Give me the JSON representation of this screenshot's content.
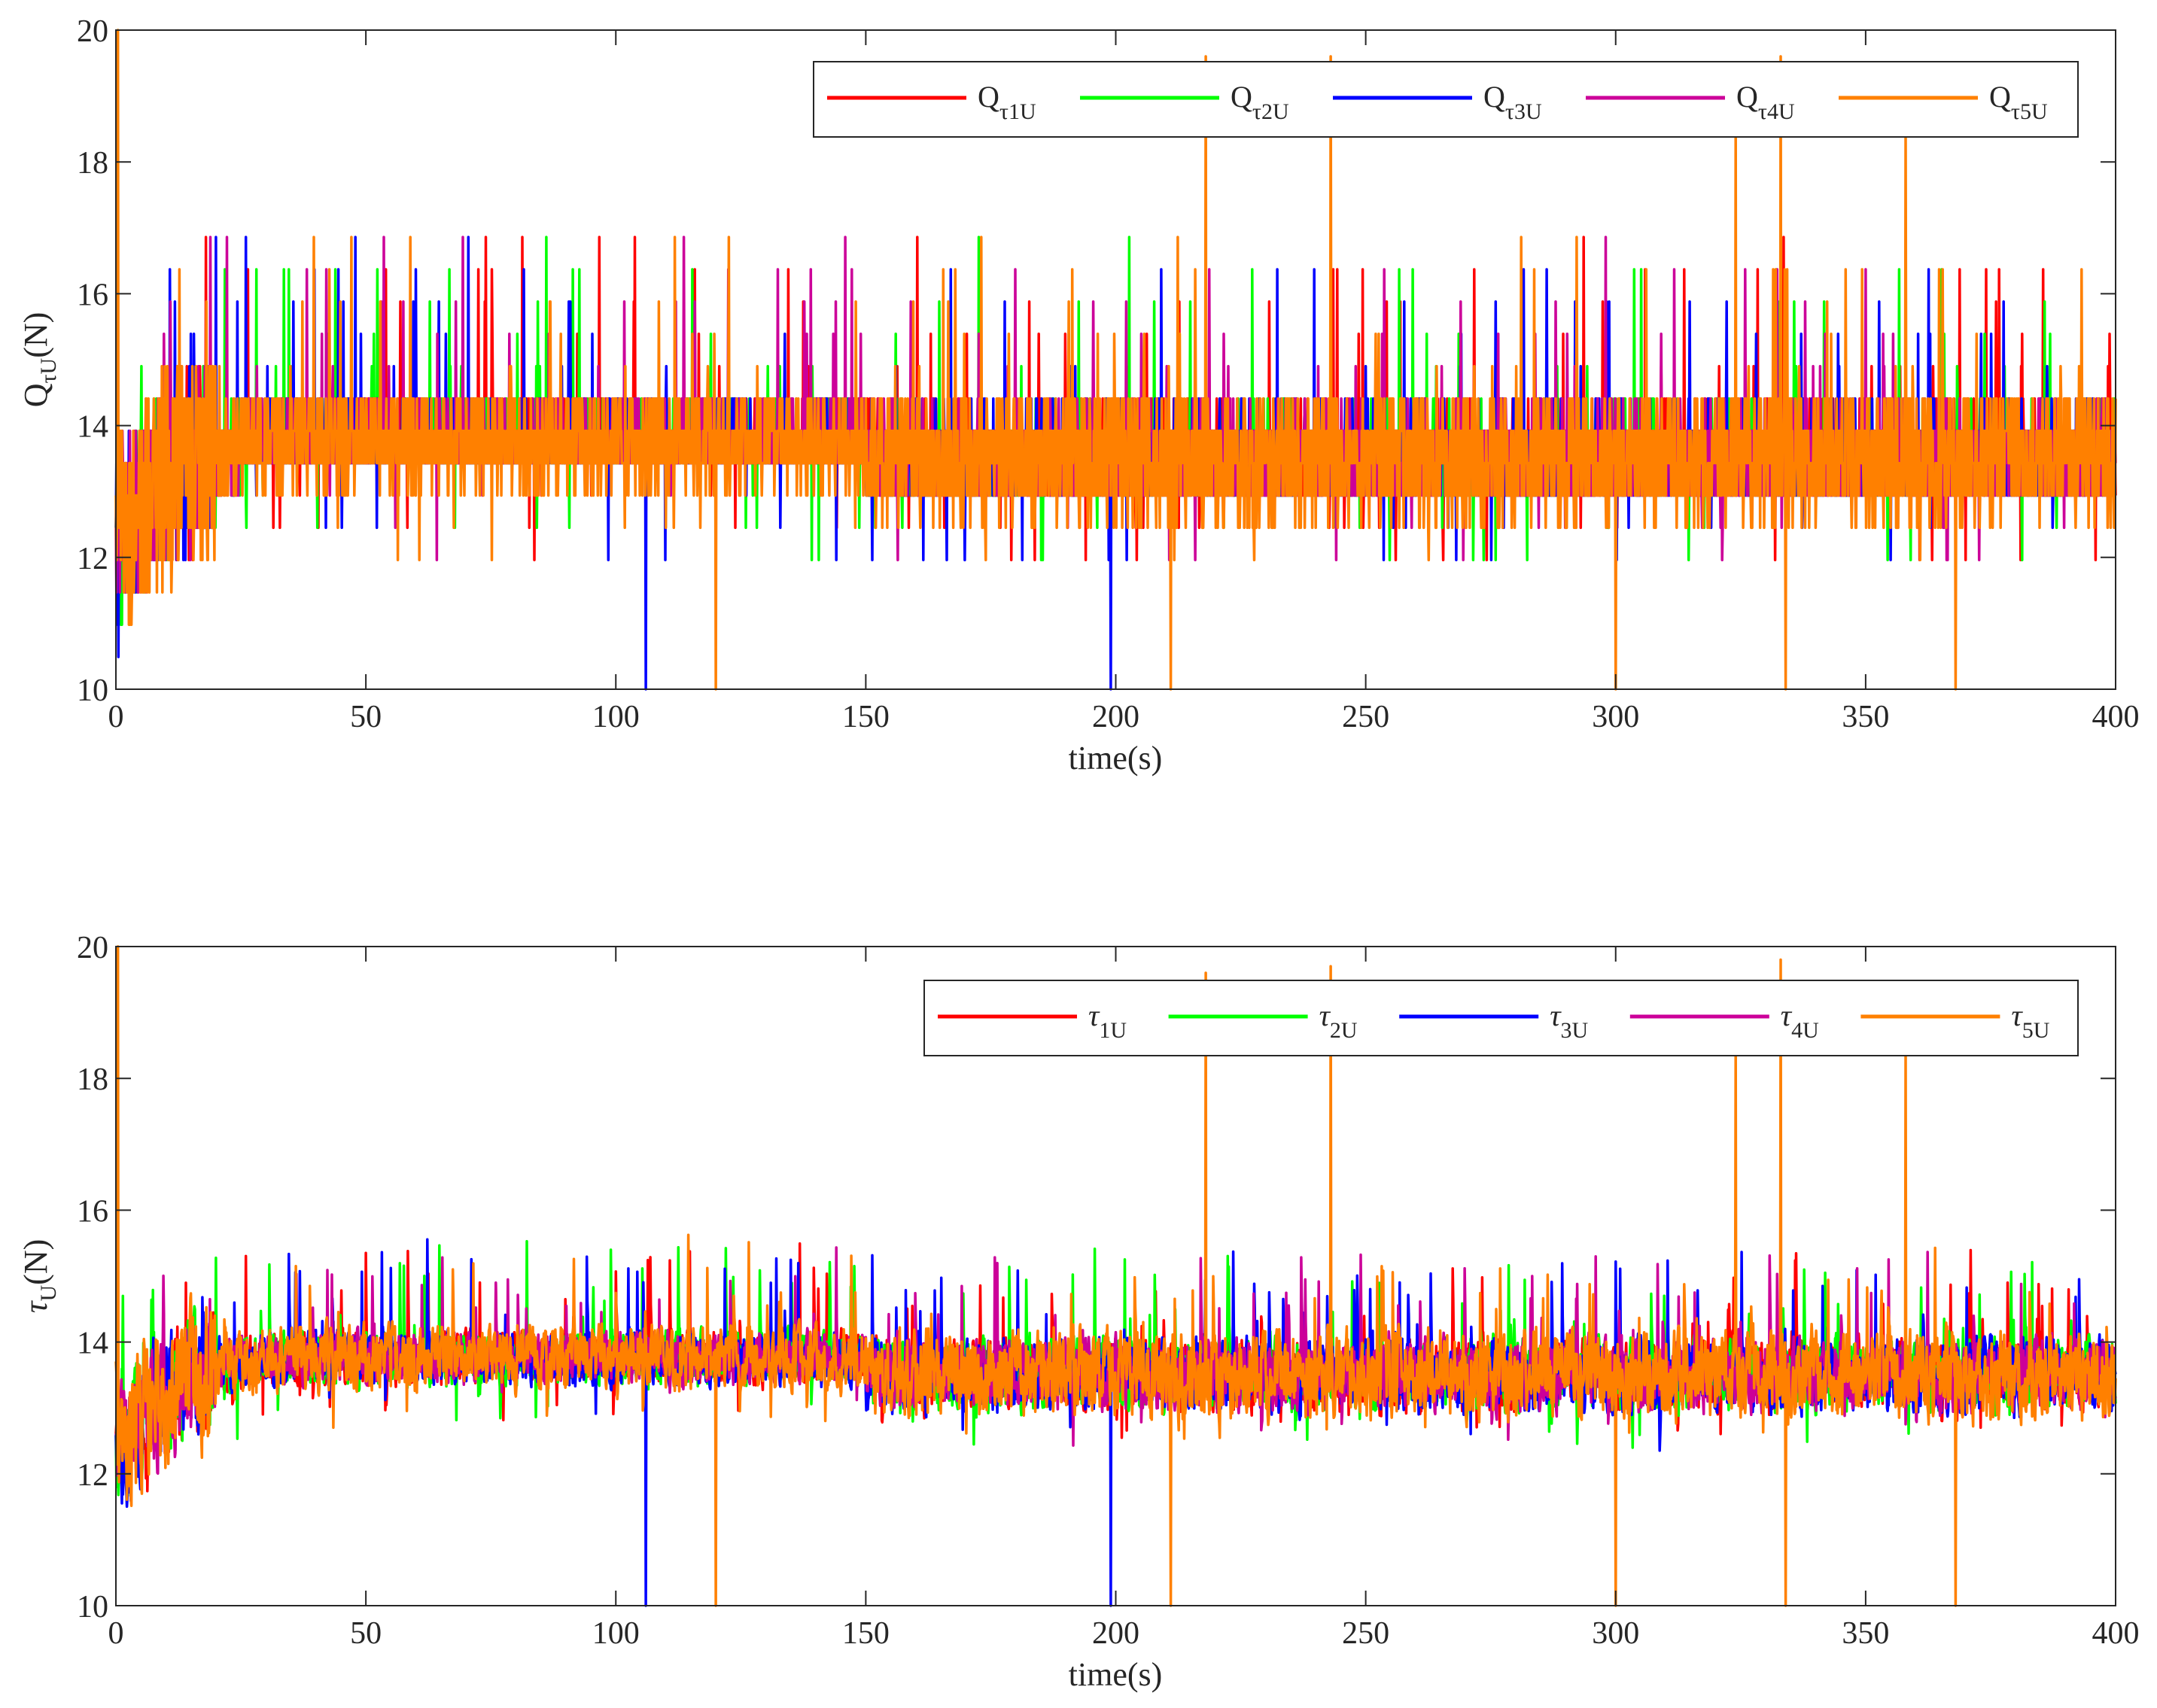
{
  "chart_data": [
    {
      "type": "line",
      "panel": "top",
      "xlabel": "time(s)",
      "ylabel_main": "Q",
      "ylabel_sub": "τU",
      "ylabel_tail": "(N)",
      "xlim": [
        0,
        400
      ],
      "ylim": [
        10,
        20
      ],
      "xticks": [
        0,
        50,
        100,
        150,
        200,
        250,
        300,
        350,
        400
      ],
      "yticks": [
        10,
        12,
        14,
        16,
        18,
        20
      ],
      "grid": false,
      "legend": "top-right, horizontal",
      "quantized": true,
      "series": [
        {
          "main": "Q",
          "sub": "τ1U",
          "color": "#ff0000"
        },
        {
          "main": "Q",
          "sub": "τ2U",
          "color": "#00ff00"
        },
        {
          "main": "Q",
          "sub": "τ3U",
          "color": "#0000ff"
        },
        {
          "main": "Q",
          "sub": "τ4U",
          "color": "#cc0099"
        },
        {
          "main": "Q",
          "sub": "τ5U",
          "color": "#ff8000"
        }
      ],
      "spikes": [
        {
          "x": 218,
          "y": 19.6
        },
        {
          "x": 243,
          "y": 19.6
        },
        {
          "x": 324,
          "y": 18.4
        },
        {
          "x": 333,
          "y": 19.6
        },
        {
          "x": 358,
          "y": 18.4
        },
        {
          "x": 0.4,
          "y": 20
        },
        {
          "x": 106,
          "y": 10.0,
          "series": 2
        },
        {
          "x": 199,
          "y": 10.0,
          "series": 2
        },
        {
          "x": 120,
          "y": 10.0
        },
        {
          "x": 211,
          "y": 10.0
        },
        {
          "x": 300,
          "y": 10.0
        },
        {
          "x": 334,
          "y": 10.0
        },
        {
          "x": 368,
          "y": 10.0
        }
      ]
    },
    {
      "type": "line",
      "panel": "bottom",
      "xlabel": "time(s)",
      "ylabel_main": "τ",
      "ylabel_sub": "U",
      "ylabel_tail": "(N)",
      "xlim": [
        0,
        400
      ],
      "ylim": [
        10,
        20
      ],
      "xticks": [
        0,
        50,
        100,
        150,
        200,
        250,
        300,
        350,
        400
      ],
      "yticks": [
        10,
        12,
        14,
        16,
        18,
        20
      ],
      "grid": false,
      "legend": "top-right, horizontal",
      "quantized": false,
      "series": [
        {
          "main": "τ",
          "sub": "1U",
          "color": "#ff0000"
        },
        {
          "main": "τ",
          "sub": "2U",
          "color": "#00ff00"
        },
        {
          "main": "τ",
          "sub": "3U",
          "color": "#0000ff"
        },
        {
          "main": "τ",
          "sub": "4U",
          "color": "#cc0099"
        },
        {
          "main": "τ",
          "sub": "5U",
          "color": "#ff8000"
        }
      ],
      "spikes": [
        {
          "x": 218,
          "y": 19.6
        },
        {
          "x": 243,
          "y": 19.7
        },
        {
          "x": 324,
          "y": 18.4
        },
        {
          "x": 333,
          "y": 19.8
        },
        {
          "x": 358,
          "y": 18.4
        },
        {
          "x": 0.4,
          "y": 20
        },
        {
          "x": 106,
          "y": 10.0,
          "series": 2
        },
        {
          "x": 199,
          "y": 10.0,
          "series": 2
        },
        {
          "x": 120,
          "y": 10.0
        },
        {
          "x": 211,
          "y": 10.0
        },
        {
          "x": 300,
          "y": 10.0
        },
        {
          "x": 334,
          "y": 10.0
        },
        {
          "x": 368,
          "y": 10.0
        }
      ]
    }
  ]
}
